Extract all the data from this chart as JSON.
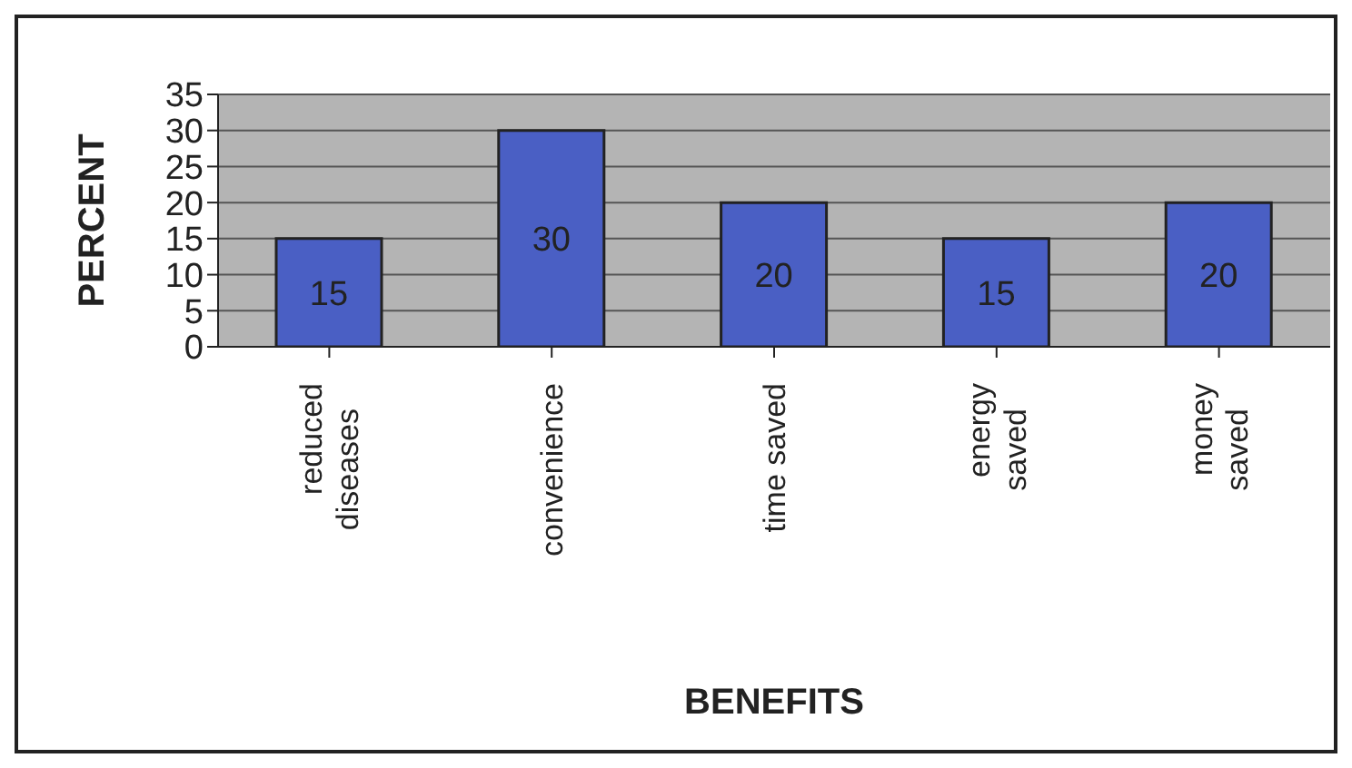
{
  "chart_data": {
    "type": "bar",
    "xlabel": "BENEFITS",
    "ylabel": "PERCENT",
    "categories": [
      "reduced diseases",
      "convenience",
      "time saved",
      "energy saved",
      "money saved"
    ],
    "values": [
      15,
      30,
      20,
      15,
      20
    ],
    "color": "#4a5fc4",
    "ylim": [
      0,
      35
    ],
    "yticks": [
      0,
      5,
      10,
      15,
      20,
      25,
      30,
      35
    ],
    "grid": "y",
    "data_labels": true
  }
}
